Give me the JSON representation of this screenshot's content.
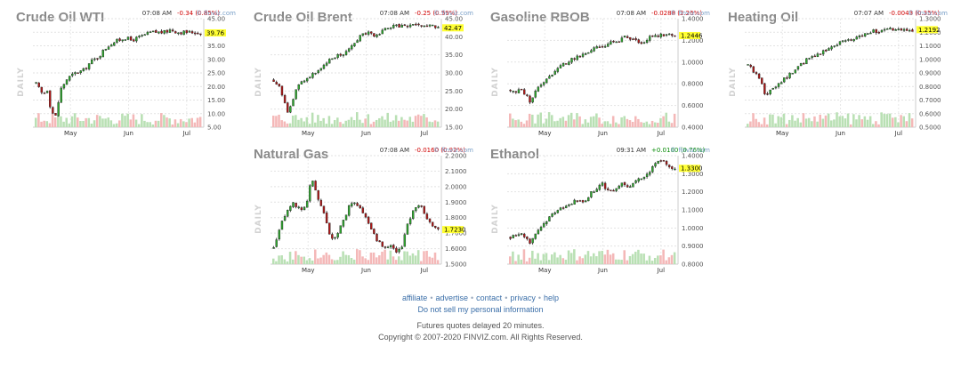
{
  "colors": {
    "up": "#2ea82e",
    "down": "#b01818",
    "vol_up": "#b9e0b4",
    "vol_down": "#f4b8b8",
    "label_bg": "#ffff33"
  },
  "chart_data": [
    {
      "type": "candlestick",
      "title": "Crude Oil WTI",
      "time": "07:08 AM",
      "change": "-0.34 (0.85%)",
      "change_dir": "down",
      "brand": "© finviz.com",
      "ylabel": "DAILY",
      "yticks": [
        "45.00",
        "40.00",
        "35.00",
        "30.00",
        "25.00",
        "20.00",
        "15.00",
        "10.00",
        "5.00"
      ],
      "ylim": [
        5,
        45
      ],
      "xticks": [
        "May",
        "Jun",
        "Jul"
      ],
      "last": "39.76",
      "last_value": 39.76,
      "path": [
        [
          0,
          21
        ],
        [
          4,
          17
        ],
        [
          7,
          19
        ],
        [
          9,
          11
        ],
        [
          12,
          9
        ],
        [
          15,
          19
        ],
        [
          19,
          23
        ],
        [
          24,
          25
        ],
        [
          29,
          26
        ],
        [
          33,
          29
        ],
        [
          38,
          31
        ],
        [
          42,
          34
        ],
        [
          46,
          36
        ],
        [
          50,
          37
        ],
        [
          54,
          38
        ],
        [
          58,
          37
        ],
        [
          62,
          38
        ],
        [
          66,
          39
        ],
        [
          70,
          40
        ],
        [
          74,
          40
        ],
        [
          78,
          40
        ],
        [
          82,
          41
        ],
        [
          86,
          40
        ],
        [
          90,
          40
        ],
        [
          95,
          40
        ],
        [
          100,
          39.76
        ]
      ]
    },
    {
      "type": "candlestick",
      "title": "Crude Oil Brent",
      "time": "07:08 AM",
      "change": "-0.25 (0.59%)",
      "change_dir": "down",
      "brand": "© finviz.com",
      "ylabel": "DAILY",
      "yticks": [
        "45.00",
        "40.00",
        "35.00",
        "30.00",
        "25.00",
        "20.00",
        "15.00"
      ],
      "ylim": [
        15,
        45
      ],
      "xticks": [
        "May",
        "Jun",
        "Jul"
      ],
      "last": "42.47",
      "last_value": 42.47,
      "path": [
        [
          0,
          28
        ],
        [
          4,
          26
        ],
        [
          7,
          21
        ],
        [
          9,
          19
        ],
        [
          12,
          23
        ],
        [
          15,
          27
        ],
        [
          19,
          28
        ],
        [
          24,
          30
        ],
        [
          29,
          31
        ],
        [
          33,
          33
        ],
        [
          38,
          35
        ],
        [
          42,
          35
        ],
        [
          46,
          37
        ],
        [
          50,
          39
        ],
        [
          54,
          41
        ],
        [
          58,
          41
        ],
        [
          62,
          40
        ],
        [
          66,
          42
        ],
        [
          70,
          42
        ],
        [
          74,
          43
        ],
        [
          78,
          43
        ],
        [
          82,
          43
        ],
        [
          86,
          43
        ],
        [
          90,
          43
        ],
        [
          95,
          43
        ],
        [
          100,
          42.47
        ]
      ]
    },
    {
      "type": "candlestick",
      "title": "Gasoline RBOB",
      "time": "07:08 AM",
      "change": "-0.0288 (2.26%)",
      "change_dir": "down",
      "brand": "© finviz.com",
      "ylabel": "DAILY",
      "yticks": [
        "1.4000",
        "1.2000",
        "1.0000",
        "0.8000",
        "0.6000",
        "0.4000"
      ],
      "ylim": [
        0.4,
        1.4
      ],
      "xticks": [
        "May",
        "Jun",
        "Jul"
      ],
      "last": "1.2446",
      "last_value": 1.2446,
      "path": [
        [
          0,
          0.74
        ],
        [
          4,
          0.72
        ],
        [
          7,
          0.75
        ],
        [
          10,
          0.68
        ],
        [
          12,
          0.64
        ],
        [
          15,
          0.72
        ],
        [
          19,
          0.8
        ],
        [
          24,
          0.88
        ],
        [
          29,
          0.94
        ],
        [
          33,
          0.99
        ],
        [
          38,
          1.03
        ],
        [
          42,
          1.05
        ],
        [
          46,
          1.08
        ],
        [
          50,
          1.12
        ],
        [
          54,
          1.13
        ],
        [
          58,
          1.16
        ],
        [
          62,
          1.18
        ],
        [
          66,
          1.2
        ],
        [
          70,
          1.23
        ],
        [
          74,
          1.2
        ],
        [
          78,
          1.18
        ],
        [
          82,
          1.2
        ],
        [
          86,
          1.24
        ],
        [
          90,
          1.25
        ],
        [
          95,
          1.26
        ],
        [
          100,
          1.2446
        ]
      ]
    },
    {
      "type": "candlestick",
      "title": "Heating Oil",
      "time": "07:07 AM",
      "change": "-0.0043 (0.35%)",
      "change_dir": "down",
      "brand": "© finviz.com",
      "ylabel": "DAILY",
      "yticks": [
        "1.3000",
        "1.2000",
        "1.1000",
        "1.0000",
        "0.9000",
        "0.8000",
        "0.7000",
        "0.6000",
        "0.5000"
      ],
      "ylim": [
        0.5,
        1.3
      ],
      "xticks": [
        "May",
        "Jun",
        "Jul"
      ],
      "last": "1.2192",
      "last_value": 1.2192,
      "path": [
        [
          0,
          0.96
        ],
        [
          4,
          0.9
        ],
        [
          8,
          0.85
        ],
        [
          11,
          0.72
        ],
        [
          14,
          0.78
        ],
        [
          18,
          0.82
        ],
        [
          22,
          0.86
        ],
        [
          27,
          0.9
        ],
        [
          31,
          0.95
        ],
        [
          35,
          0.99
        ],
        [
          40,
          1.02
        ],
        [
          44,
          1.05
        ],
        [
          48,
          1.07
        ],
        [
          52,
          1.1
        ],
        [
          56,
          1.13
        ],
        [
          60,
          1.15
        ],
        [
          64,
          1.14
        ],
        [
          68,
          1.17
        ],
        [
          72,
          1.2
        ],
        [
          76,
          1.21
        ],
        [
          80,
          1.2
        ],
        [
          84,
          1.22
        ],
        [
          88,
          1.22
        ],
        [
          93,
          1.21
        ],
        [
          100,
          1.2192
        ]
      ]
    },
    {
      "type": "candlestick",
      "title": "Natural Gas",
      "time": "07:08 AM",
      "change": "-0.0160 (0.92%)",
      "change_dir": "down",
      "brand": "© finviz.com",
      "ylabel": "DAILY",
      "yticks": [
        "2.2000",
        "2.1000",
        "2.0000",
        "1.9000",
        "1.8000",
        "1.7000",
        "1.6000",
        "1.5000"
      ],
      "ylim": [
        1.5,
        2.2
      ],
      "xticks": [
        "May",
        "Jun",
        "Jul"
      ],
      "last": "1.7230",
      "last_value": 1.723,
      "path": [
        [
          0,
          1.6
        ],
        [
          4,
          1.75
        ],
        [
          8,
          1.85
        ],
        [
          12,
          1.9
        ],
        [
          16,
          1.85
        ],
        [
          20,
          1.88
        ],
        [
          23,
          2.05
        ],
        [
          26,
          1.95
        ],
        [
          30,
          1.85
        ],
        [
          33,
          1.72
        ],
        [
          36,
          1.65
        ],
        [
          40,
          1.72
        ],
        [
          44,
          1.82
        ],
        [
          47,
          1.9
        ],
        [
          51,
          1.88
        ],
        [
          55,
          1.82
        ],
        [
          59,
          1.72
        ],
        [
          63,
          1.65
        ],
        [
          67,
          1.6
        ],
        [
          71,
          1.63
        ],
        [
          74,
          1.58
        ],
        [
          78,
          1.6
        ],
        [
          81,
          1.75
        ],
        [
          85,
          1.85
        ],
        [
          89,
          1.9
        ],
        [
          93,
          1.8
        ],
        [
          97,
          1.75
        ],
        [
          100,
          1.723
        ]
      ]
    },
    {
      "type": "candlestick",
      "title": "Ethanol",
      "time": "09:31 AM",
      "change": "+0.0100 (0.76%)",
      "change_dir": "up",
      "brand": "© finviz.com",
      "ylabel": "DAILY",
      "yticks": [
        "1.4000",
        "1.3000",
        "1.2000",
        "1.1000",
        "1.0000",
        "0.9000",
        "0.8000"
      ],
      "ylim": [
        0.8,
        1.4
      ],
      "xticks": [
        "May",
        "Jun",
        "Jul"
      ],
      "last": "1.3300",
      "last_value": 1.33,
      "path": [
        [
          0,
          0.95
        ],
        [
          4,
          0.97
        ],
        [
          8,
          0.96
        ],
        [
          12,
          0.92
        ],
        [
          16,
          0.98
        ],
        [
          20,
          1.02
        ],
        [
          24,
          1.06
        ],
        [
          28,
          1.1
        ],
        [
          32,
          1.12
        ],
        [
          36,
          1.13
        ],
        [
          40,
          1.15
        ],
        [
          44,
          1.14
        ],
        [
          48,
          1.18
        ],
        [
          52,
          1.22
        ],
        [
          56,
          1.24
        ],
        [
          60,
          1.2
        ],
        [
          64,
          1.22
        ],
        [
          68,
          1.25
        ],
        [
          72,
          1.23
        ],
        [
          76,
          1.26
        ],
        [
          80,
          1.28
        ],
        [
          84,
          1.3
        ],
        [
          88,
          1.35
        ],
        [
          92,
          1.38
        ],
        [
          96,
          1.33
        ],
        [
          100,
          1.33
        ]
      ]
    }
  ],
  "footer": {
    "links": [
      "affiliate",
      "advertise",
      "contact",
      "privacy",
      "help"
    ],
    "dnsl": "Do not sell my personal information",
    "delay": "Futures quotes delayed 20 minutes.",
    "copyright": "Copyright © 2007-2020 FINVIZ.com. All Rights Reserved."
  }
}
